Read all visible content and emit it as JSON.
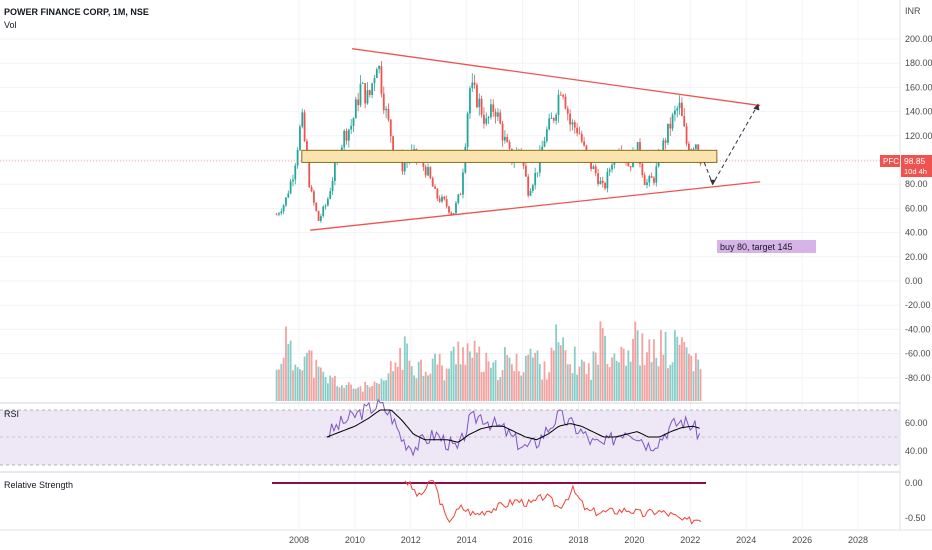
{
  "header": {
    "title": "POWER FINANCE CORP, 1M, NSE",
    "vol_label": "Vol"
  },
  "price_axis": {
    "currency": "INR",
    "ticks": [
      "200.00",
      "180.00",
      "160.00",
      "140.00",
      "120.00",
      "100.00",
      "80.00",
      "60.00",
      "40.00",
      "20.00",
      "0.00",
      "-20.00",
      "-40.00",
      "-60.00",
      "-80.00"
    ]
  },
  "price_badge": {
    "symbol": "PFC",
    "price": "98.85",
    "countdown": "10d 4h"
  },
  "annotation": {
    "text": "buy 80, target 145"
  },
  "rsi": {
    "label": "RSI",
    "ticks": [
      "60.00",
      "40.00"
    ],
    "rsi_color": "#7e57c2",
    "ma_color": "#000000"
  },
  "relative_strength": {
    "label": "Relative Strength",
    "ticks": [
      "0.00",
      "-0.50"
    ]
  },
  "time_axis": {
    "ticks": [
      "2008",
      "2010",
      "2012",
      "2014",
      "2016",
      "2018",
      "2020",
      "2022",
      "2024",
      "2026",
      "2028"
    ]
  },
  "colors": {
    "up": "#26a69a",
    "down": "#ef5350",
    "trendline": "#ef5350",
    "zone_fill": "#fbe3ae",
    "zone_border": "#8a6d1c",
    "badge": "#ef5350",
    "label_box": "#d6b4e8",
    "rsi_band": "#ede7f6"
  },
  "chart_data": [
    {
      "type": "candlestick",
      "title": "POWER FINANCE CORP, 1M, NSE",
      "x_range": [
        2007.0,
        2029.0
      ],
      "y_range": [
        0,
        205
      ],
      "current_price": 98.85,
      "x": [
        2007.2,
        2007.5,
        2007.8,
        2008.1,
        2008.4,
        2008.7,
        2009.0,
        2009.3,
        2009.6,
        2009.9,
        2010.2,
        2010.5,
        2010.8,
        2011.1,
        2011.4,
        2011.7,
        2012.0,
        2012.3,
        2012.6,
        2012.9,
        2013.2,
        2013.5,
        2013.8,
        2014.1,
        2014.4,
        2014.7,
        2015.0,
        2015.3,
        2015.6,
        2015.9,
        2016.2,
        2016.5,
        2016.8,
        2017.1,
        2017.4,
        2017.7,
        2018.0,
        2018.3,
        2018.6,
        2018.9,
        2019.2,
        2019.5,
        2019.8,
        2020.1,
        2020.4,
        2020.7,
        2021.0,
        2021.3,
        2021.6,
        2021.9,
        2022.2,
        2022.4
      ],
      "close": [
        55,
        65,
        90,
        135,
        75,
        50,
        65,
        95,
        120,
        130,
        160,
        150,
        185,
        140,
        110,
        95,
        105,
        100,
        90,
        70,
        65,
        55,
        75,
        160,
        150,
        130,
        145,
        120,
        100,
        110,
        75,
        90,
        120,
        135,
        165,
        130,
        125,
        100,
        90,
        75,
        100,
        115,
        95,
        110,
        80,
        85,
        110,
        130,
        145,
        110,
        115,
        99
      ],
      "labels": {
        "annotation": "buy 80, target 145",
        "support_resistance_zone": [
          98,
          108
        ],
        "upper_trendline": [
          [
            2009.9,
            192
          ],
          [
            2024.5,
            145
          ]
        ],
        "lower_trendline": [
          [
            2008.4,
            42
          ],
          [
            2024.5,
            82
          ]
        ],
        "projection": [
          [
            2022.5,
            98
          ],
          [
            2022.8,
            80
          ],
          [
            2024.4,
            145
          ]
        ]
      }
    },
    {
      "type": "bar",
      "title": "Vol",
      "x": [
        2007.2,
        2007.5,
        2007.8,
        2008.1,
        2008.4,
        2008.7,
        2009.0,
        2009.3,
        2009.6,
        2009.9,
        2010.2,
        2010.5,
        2010.8,
        2011.1,
        2011.4,
        2011.7,
        2012.0,
        2012.3,
        2012.6,
        2012.9,
        2013.2,
        2013.5,
        2013.8,
        2014.1,
        2014.4,
        2014.7,
        2015.0,
        2015.3,
        2015.6,
        2015.9,
        2016.2,
        2016.5,
        2016.8,
        2017.1,
        2017.4,
        2017.7,
        2018.0,
        2018.3,
        2018.6,
        2018.9,
        2019.2,
        2019.5,
        2019.8,
        2020.1,
        2020.4,
        2020.7,
        2021.0,
        2021.3,
        2021.6,
        2021.9,
        2022.2,
        2022.4
      ],
      "values": [
        0.4,
        0.9,
        0.5,
        0.7,
        0.6,
        0.4,
        0.3,
        0.3,
        0.2,
        0.2,
        0.2,
        0.2,
        0.2,
        0.3,
        0.5,
        0.7,
        0.6,
        0.5,
        0.5,
        0.6,
        0.4,
        0.6,
        0.8,
        0.7,
        0.6,
        0.5,
        0.4,
        0.6,
        0.5,
        0.5,
        0.7,
        0.6,
        0.4,
        0.9,
        0.7,
        0.5,
        0.6,
        0.4,
        0.6,
        1.0,
        0.7,
        0.8,
        0.7,
        0.9,
        0.6,
        0.7,
        0.8,
        0.6,
        0.9,
        0.7,
        0.5,
        0.4
      ]
    },
    {
      "type": "line",
      "title": "RSI",
      "ylim": [
        20,
        80
      ],
      "x": [
        2009.0,
        2009.5,
        2010.0,
        2010.5,
        2010.9,
        2011.3,
        2011.7,
        2012.1,
        2012.5,
        2012.9,
        2013.3,
        2013.7,
        2014.1,
        2014.5,
        2014.9,
        2015.3,
        2015.7,
        2016.1,
        2016.5,
        2016.9,
        2017.3,
        2017.7,
        2018.1,
        2018.5,
        2018.9,
        2019.3,
        2019.7,
        2020.1,
        2020.5,
        2020.9,
        2021.3,
        2021.7,
        2022.1,
        2022.4
      ],
      "series": [
        {
          "name": "RSI",
          "values": [
            52,
            60,
            66,
            71,
            74,
            66,
            48,
            42,
            48,
            52,
            46,
            40,
            62,
            66,
            60,
            56,
            48,
            42,
            46,
            56,
            66,
            60,
            54,
            46,
            44,
            50,
            56,
            52,
            44,
            48,
            58,
            62,
            58,
            50
          ]
        },
        {
          "name": "MA",
          "values": [
            50,
            54,
            58,
            64,
            70,
            70,
            62,
            52,
            48,
            48,
            48,
            46,
            52,
            56,
            58,
            58,
            54,
            50,
            48,
            52,
            58,
            60,
            58,
            54,
            50,
            50,
            52,
            54,
            50,
            50,
            54,
            57,
            58,
            56
          ]
        }
      ]
    },
    {
      "type": "line",
      "title": "Relative Strength",
      "ylim": [
        -0.65,
        0.1
      ],
      "x": [
        2011.8,
        2012.3,
        2012.8,
        2013.3,
        2013.8,
        2014.3,
        2014.8,
        2015.3,
        2015.8,
        2016.3,
        2016.8,
        2017.3,
        2017.8,
        2018.3,
        2018.8,
        2019.3,
        2019.8,
        2020.3,
        2020.8,
        2021.3,
        2021.8,
        2022.4
      ],
      "series": [
        {
          "name": "Relative Strength",
          "values": [
            0.05,
            -0.2,
            0.05,
            -0.55,
            -0.35,
            -0.45,
            -0.38,
            -0.32,
            -0.25,
            -0.3,
            -0.18,
            -0.35,
            -0.1,
            -0.4,
            -0.42,
            -0.4,
            -0.38,
            -0.45,
            -0.4,
            -0.45,
            -0.55,
            -0.5
          ]
        }
      ]
    }
  ]
}
